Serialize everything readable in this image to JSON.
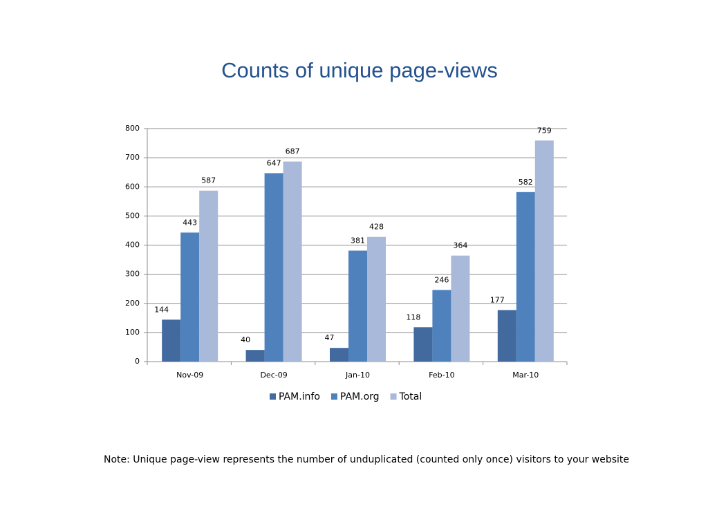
{
  "chart_data": {
    "type": "bar",
    "title": "Counts of unique page-views",
    "categories": [
      "Nov-09",
      "Dec-09",
      "Jan-10",
      "Feb-10",
      "Mar-10"
    ],
    "series": [
      {
        "name": "PAM.info",
        "color": "#426a9e",
        "values": [
          144,
          40,
          47,
          118,
          177
        ]
      },
      {
        "name": "PAM.org",
        "color": "#4f81bd",
        "values": [
          443,
          647,
          381,
          246,
          582
        ]
      },
      {
        "name": "Total",
        "color": "#a9b9da",
        "values": [
          587,
          687,
          428,
          364,
          759
        ]
      }
    ],
    "ylim": [
      0,
      800
    ],
    "yticks": [
      0,
      100,
      200,
      300,
      400,
      500,
      600,
      700,
      800
    ],
    "grid": true,
    "legend": "bottom",
    "note": "Note: Unique page-view represents the number of unduplicated (counted only once) visitors to your website"
  }
}
